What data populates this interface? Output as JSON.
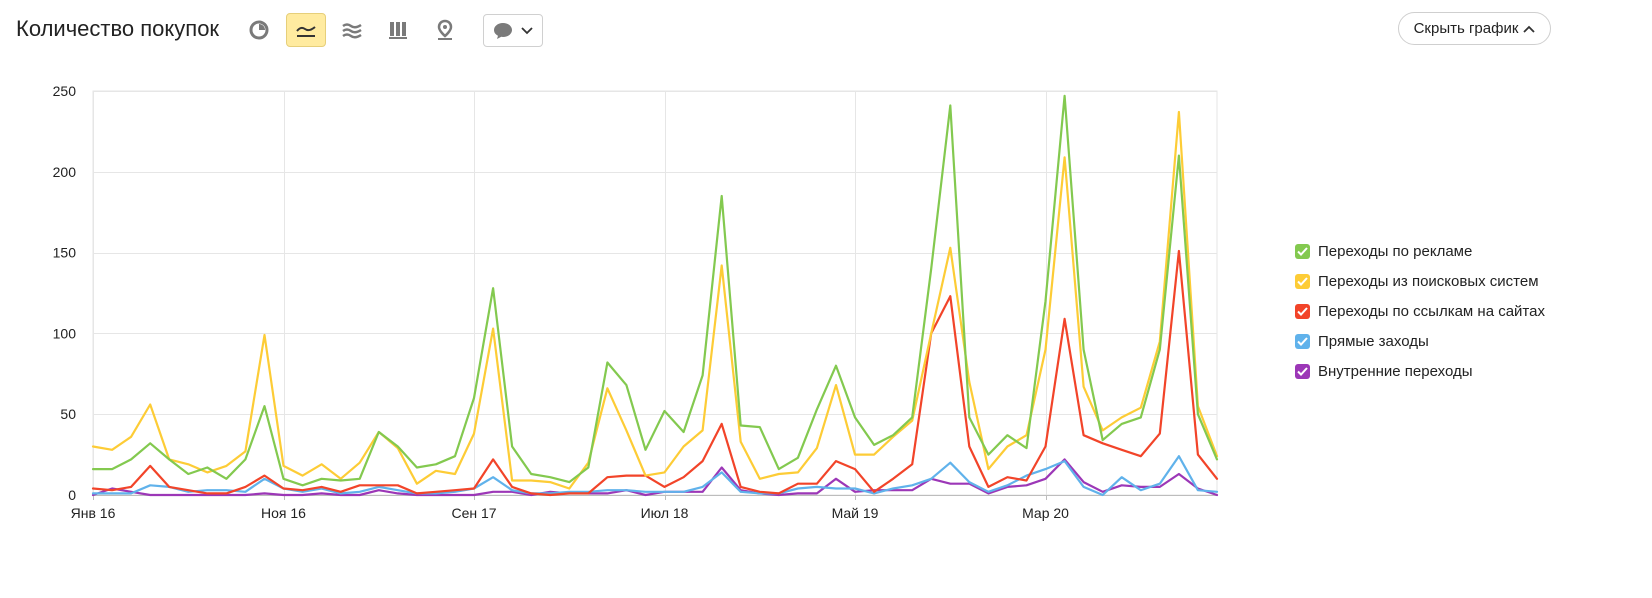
{
  "header": {
    "title": "Количество покупок",
    "hide_chart_label": "Скрыть график"
  },
  "toolbar": {
    "buttons": [
      {
        "name": "pie-chart-icon",
        "active": false
      },
      {
        "name": "line-chart-icon",
        "active": true
      },
      {
        "name": "area-chart-icon",
        "active": false
      },
      {
        "name": "bar-chart-icon",
        "active": false
      },
      {
        "name": "map-icon",
        "active": false
      }
    ],
    "comment_dropdown_icon": "comment-icon"
  },
  "chart_data": {
    "type": "line",
    "xlim": [
      0,
      59
    ],
    "ylim": [
      0,
      250
    ],
    "yticks": [
      0,
      50,
      100,
      150,
      200,
      250
    ],
    "xticks": [
      {
        "x": 0,
        "label": "Янв 16"
      },
      {
        "x": 10,
        "label": "Ноя 16"
      },
      {
        "x": 20,
        "label": "Сен 17"
      },
      {
        "x": 30,
        "label": "Июл 18"
      },
      {
        "x": 40,
        "label": "Май 19"
      },
      {
        "x": 50,
        "label": "Мар 20"
      }
    ],
    "grid": true,
    "legend_position": "right",
    "series": [
      {
        "name": "Переходы по рекламе",
        "color": "#83c94f",
        "values": [
          16,
          16,
          22,
          32,
          22,
          13,
          17,
          10,
          22,
          55,
          10,
          6,
          10,
          9,
          10,
          39,
          30,
          17,
          19,
          24,
          60,
          128,
          30,
          13,
          11,
          8,
          17,
          82,
          68,
          28,
          52,
          39,
          74,
          185,
          43,
          42,
          16,
          23,
          53,
          80,
          48,
          31,
          37,
          48,
          140,
          241,
          48,
          25,
          37,
          29,
          120,
          247,
          90,
          34,
          44,
          48,
          90,
          210,
          50,
          22
        ]
      },
      {
        "name": "Переходы из поисковых систем",
        "color": "#fdcc36",
        "values": [
          30,
          28,
          36,
          56,
          22,
          19,
          14,
          18,
          27,
          99,
          18,
          12,
          19,
          10,
          20,
          39,
          29,
          7,
          15,
          13,
          38,
          103,
          9,
          9,
          8,
          4,
          20,
          66,
          40,
          12,
          14,
          30,
          40,
          142,
          33,
          10,
          13,
          14,
          29,
          68,
          25,
          25,
          36,
          46,
          100,
          153,
          70,
          16,
          30,
          37,
          90,
          209,
          67,
          40,
          48,
          54,
          95,
          237,
          55,
          24
        ]
      },
      {
        "name": "Переходы по ссылкам на сайтах",
        "color": "#f24429",
        "values": [
          4,
          3,
          5,
          18,
          5,
          3,
          1,
          1,
          5,
          12,
          4,
          3,
          5,
          2,
          6,
          6,
          6,
          1,
          2,
          3,
          4,
          22,
          5,
          1,
          0,
          1,
          1,
          11,
          12,
          12,
          5,
          11,
          21,
          44,
          5,
          2,
          1,
          7,
          7,
          21,
          16,
          2,
          10,
          19,
          100,
          123,
          30,
          5,
          11,
          9,
          30,
          109,
          37,
          32,
          28,
          24,
          38,
          151,
          25,
          10
        ]
      },
      {
        "name": "Прямые заходы",
        "color": "#60b2eb",
        "values": [
          1,
          1,
          1,
          6,
          5,
          2,
          3,
          3,
          2,
          10,
          4,
          2,
          4,
          1,
          2,
          5,
          3,
          1,
          1,
          2,
          4,
          11,
          3,
          1,
          1,
          2,
          2,
          3,
          3,
          2,
          2,
          2,
          5,
          14,
          2,
          1,
          1,
          4,
          5,
          4,
          4,
          1,
          4,
          6,
          10,
          20,
          8,
          2,
          6,
          12,
          16,
          21,
          5,
          0,
          11,
          3,
          7,
          24,
          3,
          2
        ]
      },
      {
        "name": "Внутренние переходы",
        "color": "#9c37b7",
        "values": [
          0,
          4,
          2,
          0,
          0,
          0,
          0,
          0,
          0,
          1,
          0,
          0,
          1,
          0,
          0,
          3,
          1,
          0,
          0,
          0,
          0,
          2,
          2,
          0,
          2,
          1,
          1,
          1,
          3,
          0,
          2,
          2,
          2,
          17,
          3,
          1,
          0,
          1,
          1,
          10,
          2,
          3,
          3,
          3,
          10,
          7,
          7,
          1,
          5,
          6,
          10,
          22,
          8,
          2,
          6,
          5,
          5,
          13,
          4,
          0
        ]
      }
    ]
  }
}
